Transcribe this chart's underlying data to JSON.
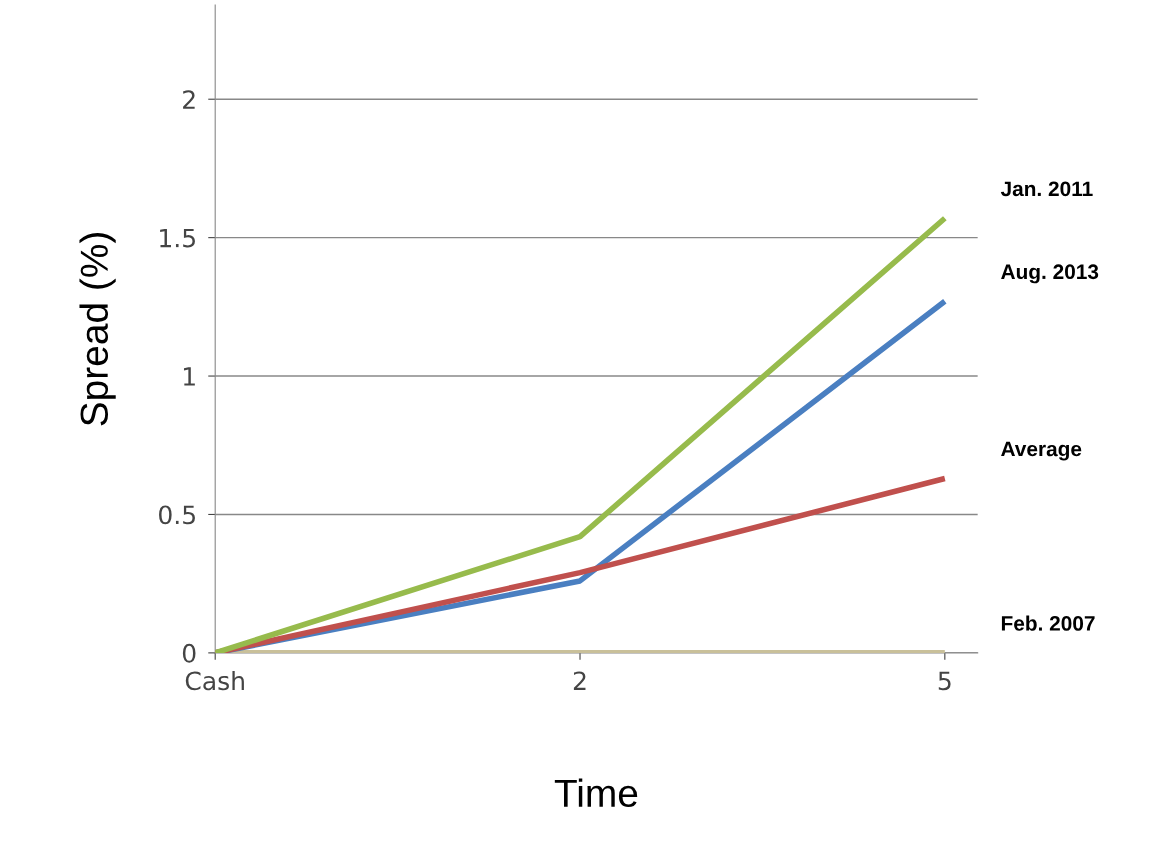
{
  "chart_data": {
    "type": "line",
    "xlabel": "Time",
    "ylabel": "Spread (%)",
    "categories": [
      "Cash",
      "2",
      "5"
    ],
    "ylim": [
      0,
      2.34
    ],
    "yticks": [
      0,
      0.5,
      1,
      1.5,
      2
    ],
    "grid": "y",
    "legend": false,
    "marker": "none",
    "line_style": "solid",
    "series": [
      {
        "name": "Feb. 2007",
        "color": "#c9c09a",
        "values": [
          0,
          0,
          0
        ]
      },
      {
        "name": "Aug. 2013",
        "color": "#4a7fc1",
        "values": [
          0,
          0.26,
          1.27
        ]
      },
      {
        "name": "Average",
        "color": "#c0504d",
        "values": [
          0,
          0.29,
          0.63
        ]
      },
      {
        "name": "Jan. 2011",
        "color": "#97bb4c",
        "values": [
          0,
          0.42,
          1.57
        ]
      }
    ]
  }
}
